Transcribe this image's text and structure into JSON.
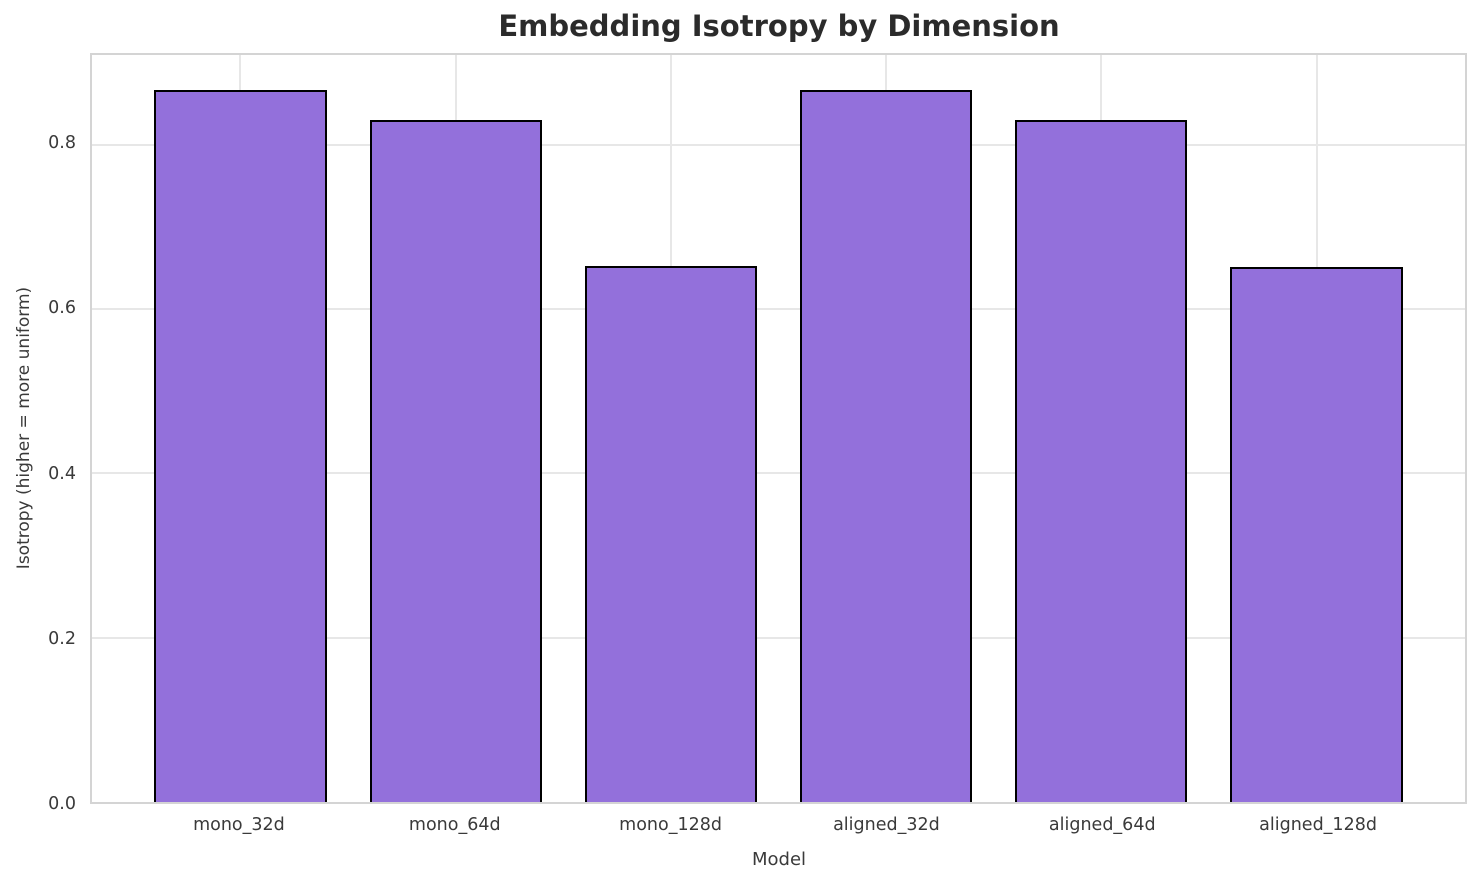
{
  "chart_data": {
    "type": "bar",
    "title": "Embedding Isotropy by Dimension",
    "xlabel": "Model",
    "ylabel": "Isotropy (higher = more uniform)",
    "categories": [
      "mono_32d",
      "mono_64d",
      "mono_128d",
      "aligned_32d",
      "aligned_64d",
      "aligned_128d"
    ],
    "values": [
      0.866,
      0.83,
      0.652,
      0.866,
      0.83,
      0.651
    ],
    "ytick_labels": [
      "0.0",
      "0.2",
      "0.4",
      "0.6",
      "0.8"
    ],
    "ytick_values": [
      0.0,
      0.2,
      0.4,
      0.6,
      0.8
    ],
    "ylim": [
      0,
      0.909
    ],
    "xlim": [
      -0.69,
      5.69
    ],
    "bar_width": 0.8,
    "grid": true,
    "legend": "none",
    "colors": {
      "bar_fill": "#9370DB",
      "bar_edge": "#000000",
      "grid": "#e7e7e7",
      "spine": "#d4d4d4",
      "title_text": "#2b2b2b",
      "tick_text": "#3a3a3a",
      "background": "#ffffff"
    }
  }
}
